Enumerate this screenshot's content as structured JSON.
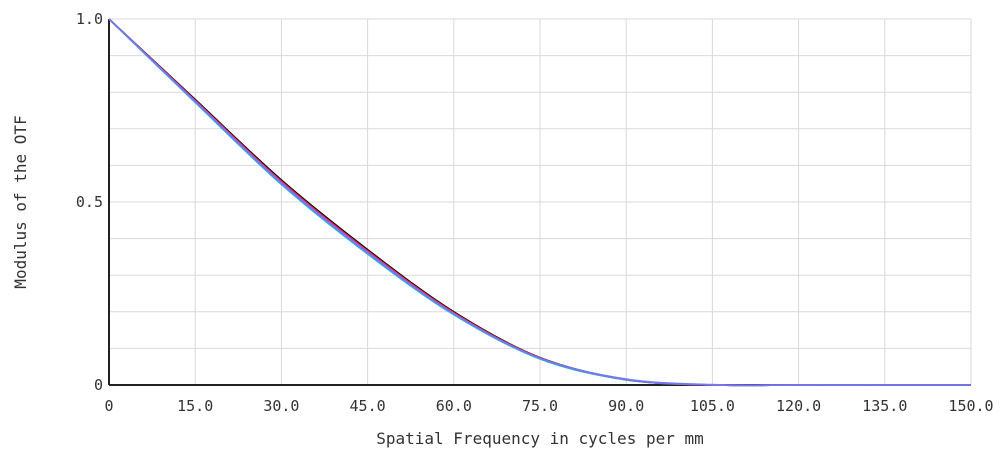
{
  "chart_data": {
    "type": "line",
    "title": "",
    "xlabel": "Spatial Frequency in cycles per mm",
    "ylabel": "Modulus of the OTF",
    "xlim": [
      0,
      150
    ],
    "ylim": [
      0,
      1
    ],
    "grid": true,
    "x_ticks": [
      0,
      15,
      30,
      45,
      60,
      75,
      90,
      105,
      120,
      135,
      150
    ],
    "x_tick_labels": [
      "0",
      "15.0",
      "30.0",
      "45.0",
      "60.0",
      "75.0",
      "90.0",
      "105.0",
      "120.0",
      "135.0",
      "150.0"
    ],
    "y_ticks": [
      0,
      0.5,
      1
    ],
    "y_tick_labels": [
      "0",
      "0.5",
      "1.0"
    ],
    "x": [
      0,
      15,
      30,
      45,
      60,
      75,
      90,
      105,
      120,
      135,
      150
    ],
    "series": [
      {
        "color": "#000000",
        "values": [
          1.0,
          0.78,
          0.56,
          0.37,
          0.2,
          0.075,
          0.015,
          0.0,
          0.0,
          0.0,
          0.0
        ]
      },
      {
        "color": "#cc2222",
        "values": [
          1.0,
          0.778,
          0.557,
          0.367,
          0.198,
          0.074,
          0.015,
          0.0,
          0.0,
          0.0,
          0.0
        ]
      },
      {
        "color": "#22aa44",
        "values": [
          1.0,
          0.775,
          0.553,
          0.363,
          0.195,
          0.072,
          0.014,
          0.0,
          0.0,
          0.0,
          0.0
        ]
      },
      {
        "color": "#22bbcc",
        "values": [
          1.0,
          0.772,
          0.548,
          0.358,
          0.192,
          0.071,
          0.014,
          0.0,
          0.0,
          0.0,
          0.0
        ]
      },
      {
        "color": "#cc44cc",
        "values": [
          1.0,
          0.776,
          0.554,
          0.364,
          0.196,
          0.073,
          0.015,
          0.0,
          0.0,
          0.0,
          0.0
        ]
      },
      {
        "color": "#6f7bf7",
        "values": [
          1.0,
          0.774,
          0.551,
          0.361,
          0.194,
          0.073,
          0.016,
          0.001,
          0.0,
          0.0,
          0.0
        ]
      }
    ]
  }
}
